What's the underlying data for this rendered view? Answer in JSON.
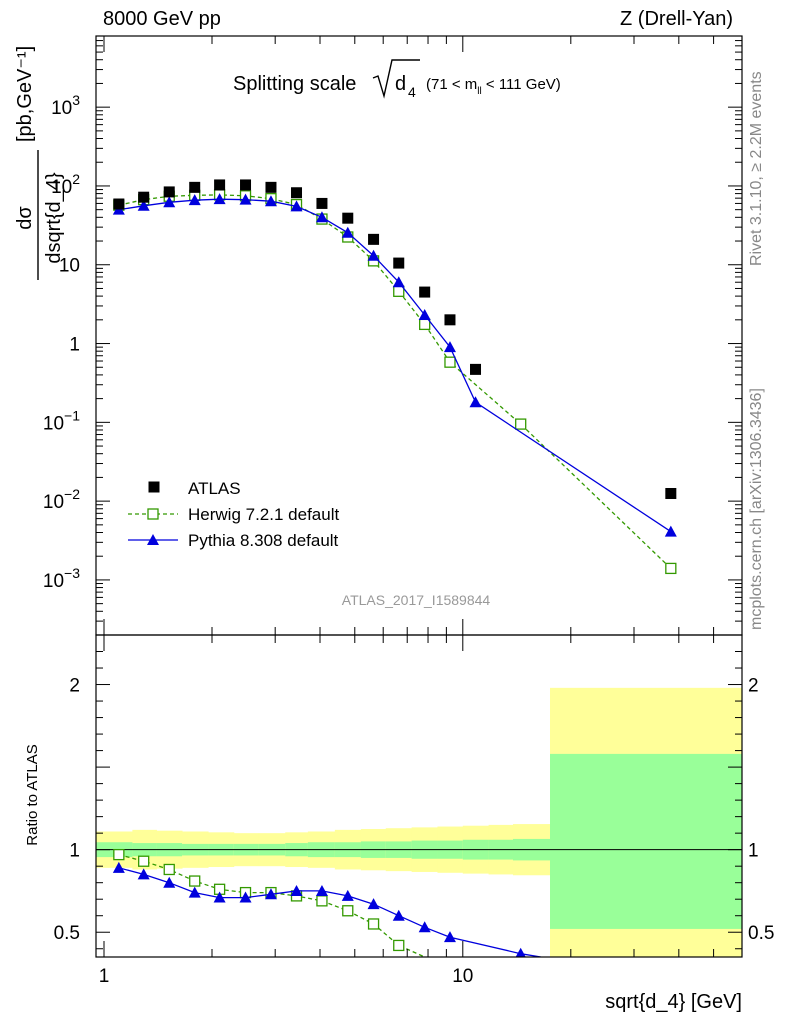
{
  "header": {
    "left": "8000 GeV pp",
    "right": "Z (Drell-Yan)"
  },
  "title": {
    "main": "Splitting scale",
    "subscript": "4",
    "range_pre": "(71 < m",
    "range_sub": "ll",
    "range_post": " < 111 GeV)"
  },
  "side_labels": {
    "rivet": "Rivet 3.1.10, ≥ 2.2M events",
    "mcplots": "mcplots.cern.ch [arXiv:1306.3436]"
  },
  "watermark": "ATLAS_2017_I1589844",
  "colors": {
    "data": "#000000",
    "herwig": "#339900",
    "pythia": "#0000dd",
    "band_green": "#99ff99",
    "band_yellow": "#ffff99"
  },
  "chart_data": [
    {
      "type": "scatter",
      "xscale": "log",
      "yscale": "log",
      "xlim": [
        0.95,
        60
      ],
      "ylim": [
        0.0002,
        8000
      ],
      "ylabel": {
        "numerator": "dσ",
        "denominator": "dsqrt{d_4}",
        "units": "[pb,GeV⁻¹]"
      },
      "yticks": [
        {
          "v": 0.001,
          "base": "10",
          "exp": "−3"
        },
        {
          "v": 0.01,
          "base": "10",
          "exp": "−2"
        },
        {
          "v": 0.1,
          "base": "10",
          "exp": "−1"
        },
        {
          "v": 1,
          "base": "1",
          "exp": ""
        },
        {
          "v": 10,
          "base": "10",
          "exp": ""
        },
        {
          "v": 100,
          "base": "10",
          "exp": "2"
        },
        {
          "v": 1000,
          "base": "10",
          "exp": "3"
        }
      ],
      "x": [
        1.1,
        1.29,
        1.52,
        1.79,
        2.1,
        2.48,
        2.92,
        3.44,
        4.05,
        4.78,
        5.64,
        6.63,
        7.83,
        9.21,
        10.85,
        14.5,
        38
      ],
      "series": [
        {
          "name": "ATLAS",
          "style": "data",
          "values": [
            59,
            72,
            84,
            96,
            103,
            103,
            96,
            82,
            60,
            39,
            21,
            10.5,
            4.5,
            2.0,
            0.47,
            null,
            0.0125
          ]
        },
        {
          "name": "Herwig 7.2.1 default",
          "style": "herwig",
          "x": [
            1.1,
            1.29,
            1.52,
            1.79,
            2.1,
            2.48,
            2.92,
            3.44,
            4.05,
            4.78,
            5.64,
            6.63,
            7.83,
            9.21,
            14.5,
            38
          ],
          "values": [
            57,
            67,
            74,
            76,
            77,
            75,
            69,
            58,
            38,
            22.5,
            11.2,
            4.6,
            1.75,
            0.58,
            0.095,
            0.0014
          ]
        },
        {
          "name": "Pythia 8.308 default",
          "style": "pythia",
          "x": [
            1.1,
            1.29,
            1.52,
            1.79,
            2.1,
            2.48,
            2.92,
            3.44,
            4.05,
            4.78,
            5.64,
            6.63,
            7.83,
            9.21,
            10.85,
            14.5,
            38
          ],
          "values": [
            50,
            56,
            62,
            66,
            68,
            67,
            64,
            55,
            40,
            25.5,
            13,
            6.0,
            2.3,
            0.9,
            0.18,
            null,
            0.0041
          ]
        }
      ],
      "legend_position": "bottom-left"
    },
    {
      "type": "line",
      "xscale": "log",
      "xlim": [
        0.95,
        60
      ],
      "ylim": [
        0.35,
        2.3
      ],
      "ylabel": "Ratio to ATLAS",
      "xlabel": "sqrt{d_4} [GeV]",
      "yticks": [
        0.5,
        1,
        2
      ],
      "xticks_major": [
        {
          "v": 1,
          "label": "1"
        },
        {
          "v": 10,
          "label": "10"
        }
      ],
      "band_edges": [
        0.95,
        1.2,
        1.4,
        1.65,
        1.95,
        2.3,
        2.7,
        3.2,
        3.7,
        4.4,
        5.2,
        6.1,
        7.2,
        8.5,
        10.0,
        11.8,
        13.8,
        17.5,
        60
      ],
      "band_green_lo": [
        0.955,
        0.96,
        0.96,
        0.965,
        0.965,
        0.965,
        0.965,
        0.96,
        0.955,
        0.955,
        0.95,
        0.95,
        0.945,
        0.945,
        0.94,
        0.94,
        0.935,
        0.52
      ],
      "band_green_hi": [
        1.045,
        1.04,
        1.04,
        1.035,
        1.035,
        1.035,
        1.035,
        1.04,
        1.045,
        1.045,
        1.05,
        1.05,
        1.055,
        1.055,
        1.06,
        1.06,
        1.065,
        1.58
      ],
      "band_yellow_lo": [
        0.89,
        0.88,
        0.885,
        0.89,
        0.895,
        0.9,
        0.9,
        0.895,
        0.89,
        0.88,
        0.875,
        0.87,
        0.865,
        0.86,
        0.855,
        0.85,
        0.845,
        0.3
      ],
      "band_yellow_hi": [
        1.11,
        1.12,
        1.115,
        1.11,
        1.105,
        1.1,
        1.1,
        1.105,
        1.11,
        1.12,
        1.125,
        1.13,
        1.135,
        1.14,
        1.145,
        1.15,
        1.155,
        1.98
      ],
      "series": [
        {
          "name": "Herwig 7.2.1 default",
          "style": "herwig",
          "x": [
            1.1,
            1.29,
            1.52,
            1.79,
            2.1,
            2.48,
            2.92,
            3.44,
            4.05,
            4.78,
            5.64,
            6.63,
            7.83,
            8.5
          ],
          "values": [
            0.97,
            0.93,
            0.88,
            0.81,
            0.76,
            0.74,
            0.74,
            0.72,
            0.69,
            0.63,
            0.55,
            0.42,
            0.35,
            0.3
          ]
        },
        {
          "name": "Pythia 8.308 default",
          "style": "pythia",
          "x": [
            1.1,
            1.29,
            1.52,
            1.79,
            2.1,
            2.48,
            2.92,
            3.44,
            4.05,
            4.78,
            5.64,
            6.63,
            7.83,
            9.21,
            14.5,
            16.5
          ],
          "values": [
            0.89,
            0.85,
            0.8,
            0.74,
            0.71,
            0.71,
            0.73,
            0.75,
            0.75,
            0.72,
            0.67,
            0.6,
            0.53,
            0.47,
            0.37,
            0.35
          ]
        }
      ]
    }
  ]
}
